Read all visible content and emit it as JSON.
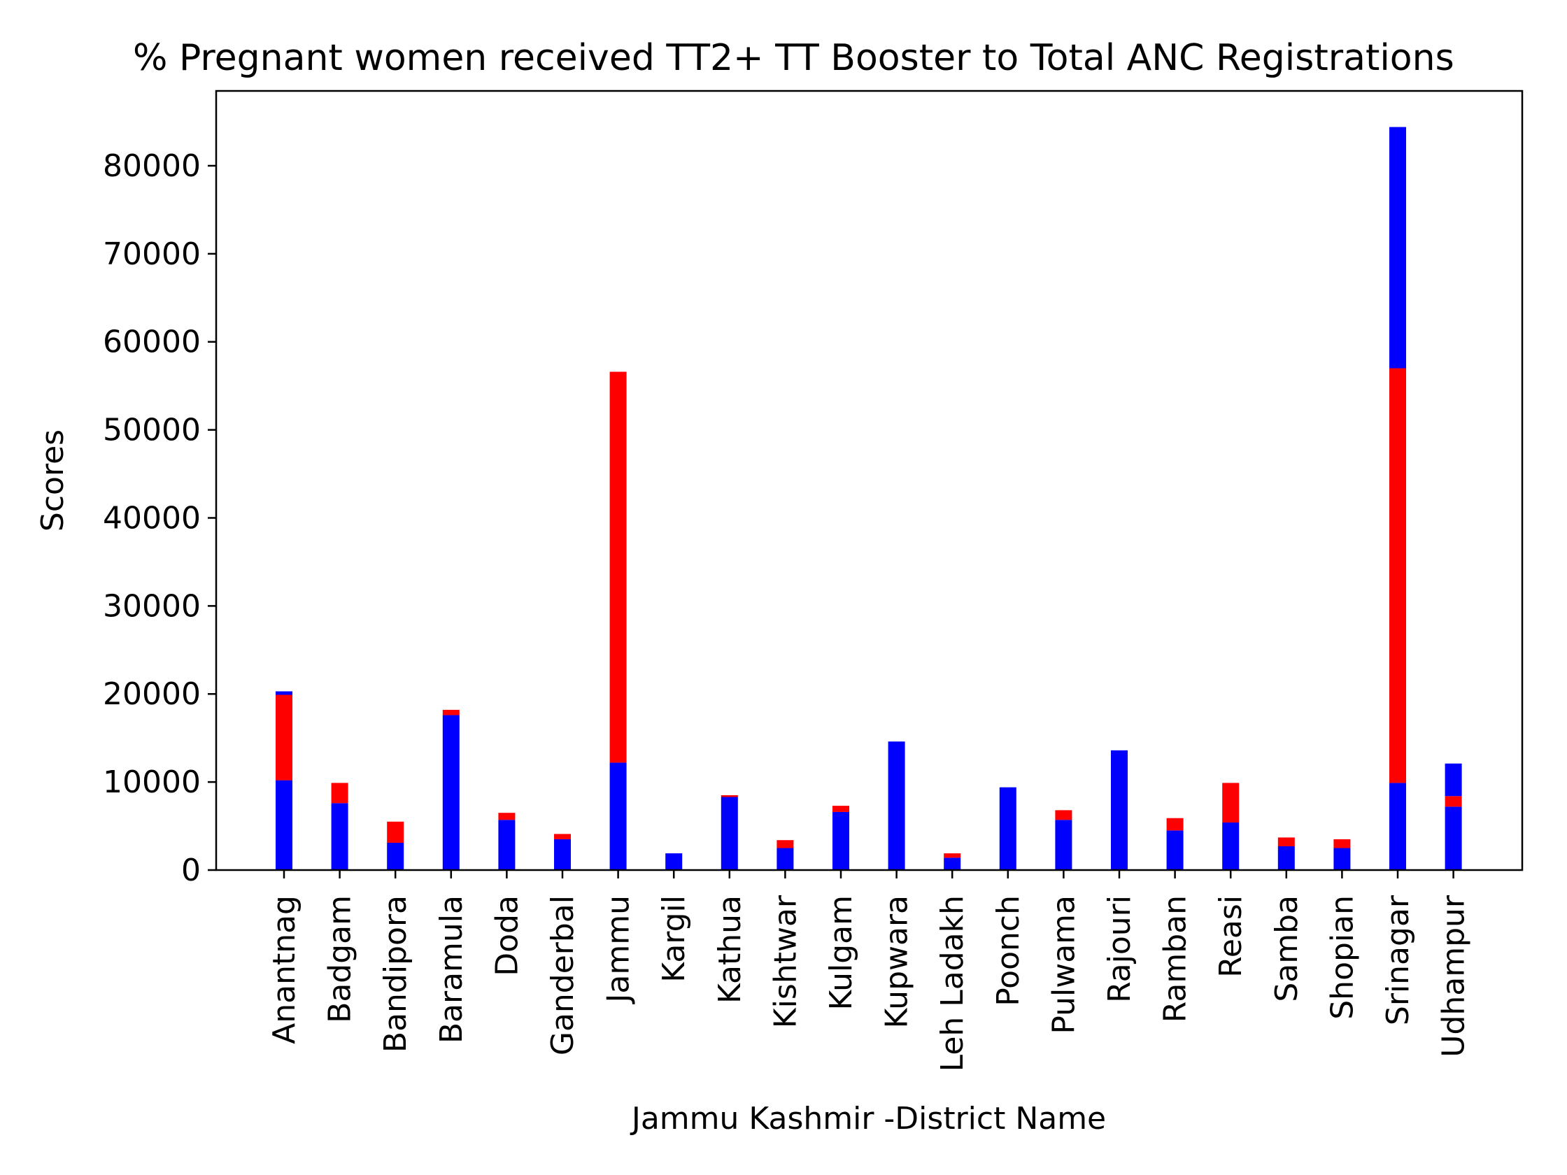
{
  "chart_data": {
    "type": "bar",
    "stacked": true,
    "title": "% Pregnant women received TT2+ TT Booster to Total ANC Registrations",
    "xlabel": "Jammu Kashmir -District Name",
    "ylabel": "Scores",
    "ylim": [
      0,
      88500
    ],
    "yticks": [
      0,
      10000,
      20000,
      30000,
      40000,
      50000,
      60000,
      70000,
      80000
    ],
    "grid": false,
    "categories": [
      "Anantnag",
      "Badgam",
      "Bandipora",
      "Baramula",
      "Doda",
      "Ganderbal",
      "Jammu",
      "Kargil",
      "Kathua",
      "Kishtwar",
      "Kulgam",
      "Kupwara",
      "Leh Ladakh",
      "Poonch",
      "Pulwama",
      "Rajouri",
      "Ramban",
      "Reasi",
      "Samba",
      "Shopian",
      "Srinagar",
      "Udhampur"
    ],
    "series": [
      {
        "color": "#0000ff",
        "values": [
          10200,
          7600,
          3100,
          17600,
          5700,
          3500,
          12200,
          1900,
          8300,
          2500,
          6600,
          14600,
          1400,
          9400,
          5700,
          13600,
          4500,
          5400,
          2700,
          2500,
          9900,
          7200
        ]
      },
      {
        "color": "#ff0000",
        "values": [
          9700,
          2300,
          2400,
          600,
          800,
          600,
          44400,
          0,
          200,
          900,
          700,
          0,
          500,
          0,
          1100,
          0,
          1400,
          4500,
          1000,
          1000,
          47100,
          1200
        ]
      },
      {
        "color": "#0000ff",
        "values": [
          400,
          0,
          0,
          0,
          0,
          0,
          0,
          0,
          0,
          0,
          0,
          0,
          0,
          0,
          0,
          0,
          0,
          0,
          0,
          0,
          27400,
          3700
        ]
      }
    ]
  }
}
